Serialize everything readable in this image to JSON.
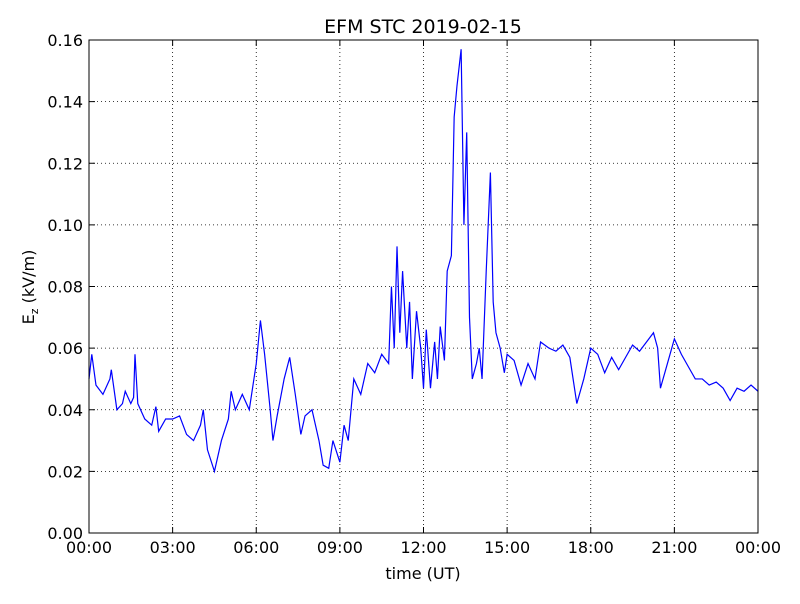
{
  "chart_data": {
    "type": "line",
    "title": "EFM STC    2019-02-15",
    "xlabel": "time (UT)",
    "ylabel": {
      "main": "E",
      "sub": "z",
      "rest": " (kV/m)"
    },
    "xlim": [
      0,
      24
    ],
    "xticks": [
      {
        "value": 0,
        "label": "00:00"
      },
      {
        "value": 3,
        "label": "03:00"
      },
      {
        "value": 6,
        "label": "06:00"
      },
      {
        "value": 9,
        "label": "09:00"
      },
      {
        "value": 12,
        "label": "12:00"
      },
      {
        "value": 15,
        "label": "15:00"
      },
      {
        "value": 18,
        "label": "18:00"
      },
      {
        "value": 21,
        "label": "21:00"
      },
      {
        "value": 24,
        "label": "00:00"
      }
    ],
    "ylim": [
      0,
      0.16
    ],
    "yticks": [
      {
        "value": 0,
        "label": "0.00"
      },
      {
        "value": 0.02,
        "label": "0.02"
      },
      {
        "value": 0.04,
        "label": "0.04"
      },
      {
        "value": 0.06,
        "label": "0.06"
      },
      {
        "value": 0.08,
        "label": "0.08"
      },
      {
        "value": 0.1,
        "label": "0.10"
      },
      {
        "value": 0.12,
        "label": "0.12"
      },
      {
        "value": 0.14,
        "label": "0.14"
      },
      {
        "value": 0.16,
        "label": "0.16"
      }
    ],
    "grid": true,
    "color": "#0000ff",
    "x": [
      0,
      0.1,
      0.25,
      0.5,
      0.75,
      0.8,
      1.0,
      1.2,
      1.3,
      1.5,
      1.6,
      1.65,
      1.75,
      2.0,
      2.25,
      2.4,
      2.5,
      2.75,
      3.0,
      3.25,
      3.5,
      3.75,
      4.0,
      4.1,
      4.25,
      4.5,
      4.75,
      5.0,
      5.1,
      5.25,
      5.5,
      5.75,
      6.0,
      6.15,
      6.3,
      6.5,
      6.6,
      6.75,
      7.0,
      7.2,
      7.4,
      7.6,
      7.75,
      8.0,
      8.25,
      8.4,
      8.6,
      8.75,
      9.0,
      9.15,
      9.3,
      9.5,
      9.75,
      10.0,
      10.25,
      10.5,
      10.75,
      10.85,
      10.95,
      11.05,
      11.15,
      11.25,
      11.4,
      11.5,
      11.6,
      11.75,
      11.9,
      12.0,
      12.1,
      12.25,
      12.4,
      12.5,
      12.6,
      12.75,
      12.85,
      13.0,
      13.1,
      13.2,
      13.35,
      13.45,
      13.55,
      13.65,
      13.75,
      13.9,
      14.0,
      14.1,
      14.25,
      14.4,
      14.5,
      14.6,
      14.75,
      14.9,
      15.0,
      15.25,
      15.5,
      15.75,
      16.0,
      16.2,
      16.5,
      16.75,
      17.0,
      17.25,
      17.5,
      17.75,
      18.0,
      18.25,
      18.5,
      18.75,
      19.0,
      19.25,
      19.5,
      19.75,
      20.0,
      20.25,
      20.4,
      20.5,
      20.75,
      21.0,
      21.25,
      21.5,
      21.75,
      22.0,
      22.25,
      22.5,
      22.75,
      23.0,
      23.25,
      23.5,
      23.75,
      24.0
    ],
    "values": [
      0.05,
      0.058,
      0.048,
      0.045,
      0.05,
      0.053,
      0.04,
      0.042,
      0.046,
      0.042,
      0.044,
      0.058,
      0.042,
      0.037,
      0.035,
      0.041,
      0.033,
      0.037,
      0.037,
      0.038,
      0.032,
      0.03,
      0.035,
      0.04,
      0.027,
      0.02,
      0.03,
      0.037,
      0.046,
      0.04,
      0.045,
      0.04,
      0.055,
      0.069,
      0.058,
      0.04,
      0.03,
      0.038,
      0.05,
      0.057,
      0.045,
      0.032,
      0.038,
      0.04,
      0.03,
      0.022,
      0.021,
      0.03,
      0.023,
      0.035,
      0.03,
      0.05,
      0.045,
      0.055,
      0.052,
      0.058,
      0.055,
      0.08,
      0.06,
      0.093,
      0.065,
      0.085,
      0.06,
      0.075,
      0.05,
      0.072,
      0.06,
      0.047,
      0.066,
      0.047,
      0.062,
      0.05,
      0.067,
      0.056,
      0.085,
      0.09,
      0.135,
      0.145,
      0.157,
      0.1,
      0.13,
      0.07,
      0.05,
      0.055,
      0.06,
      0.05,
      0.085,
      0.117,
      0.075,
      0.065,
      0.06,
      0.052,
      0.058,
      0.056,
      0.048,
      0.055,
      0.05,
      0.062,
      0.06,
      0.059,
      0.061,
      0.057,
      0.042,
      0.05,
      0.06,
      0.058,
      0.052,
      0.057,
      0.053,
      0.057,
      0.061,
      0.059,
      0.062,
      0.065,
      0.06,
      0.047,
      0.055,
      0.063,
      0.058,
      0.054,
      0.05,
      0.05,
      0.048,
      0.049,
      0.047,
      0.043,
      0.047,
      0.046,
      0.048,
      0.046
    ]
  }
}
